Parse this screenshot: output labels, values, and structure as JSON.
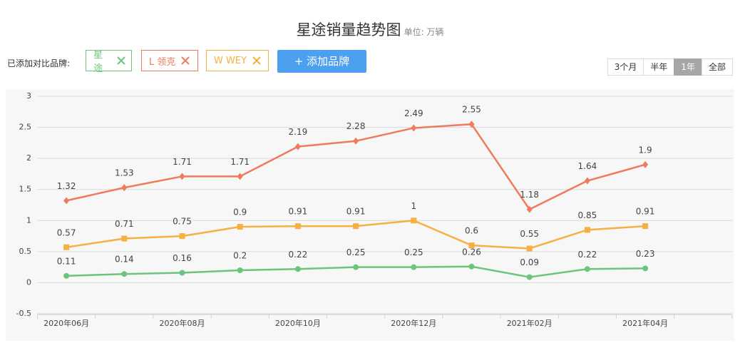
{
  "header": {
    "title": "星途销量趋势图",
    "unit": "单位: 万辆",
    "brands_label": "已添加对比品牌:",
    "add_button": "+ 添加品牌"
  },
  "ranges": [
    "3个月",
    "半年",
    "1年",
    "全部"
  ],
  "active_range": "1年",
  "chart_data": {
    "type": "line",
    "categories": [
      "2020年06月",
      null,
      "2020年08月",
      null,
      "2020年10月",
      null,
      "2020年12月",
      null,
      "2021年02月",
      null,
      "2021年04月",
      null
    ],
    "series": [
      {
        "name": "星途",
        "color": "#6cc57c",
        "marker": "circle",
        "values": [
          0.11,
          0.14,
          0.16,
          0.2,
          0.22,
          0.25,
          0.25,
          0.26,
          0.09,
          0.22,
          0.23,
          null
        ]
      },
      {
        "name": "L 领克",
        "color": "#ef7b5e",
        "marker": "diamond",
        "values": [
          1.32,
          1.53,
          1.71,
          1.71,
          2.19,
          2.28,
          2.49,
          2.55,
          1.18,
          1.64,
          1.9,
          null
        ]
      },
      {
        "name": "W WEY",
        "color": "#f5b041",
        "marker": "square",
        "values": [
          0.57,
          0.71,
          0.75,
          0.9,
          0.91,
          0.91,
          1,
          0.6,
          0.55,
          0.85,
          0.91,
          null
        ]
      }
    ],
    "ylim": [
      -0.5,
      3
    ],
    "yticks": [
      -0.5,
      0,
      0.5,
      1,
      1.5,
      2,
      2.5,
      3
    ],
    "grid": true
  }
}
